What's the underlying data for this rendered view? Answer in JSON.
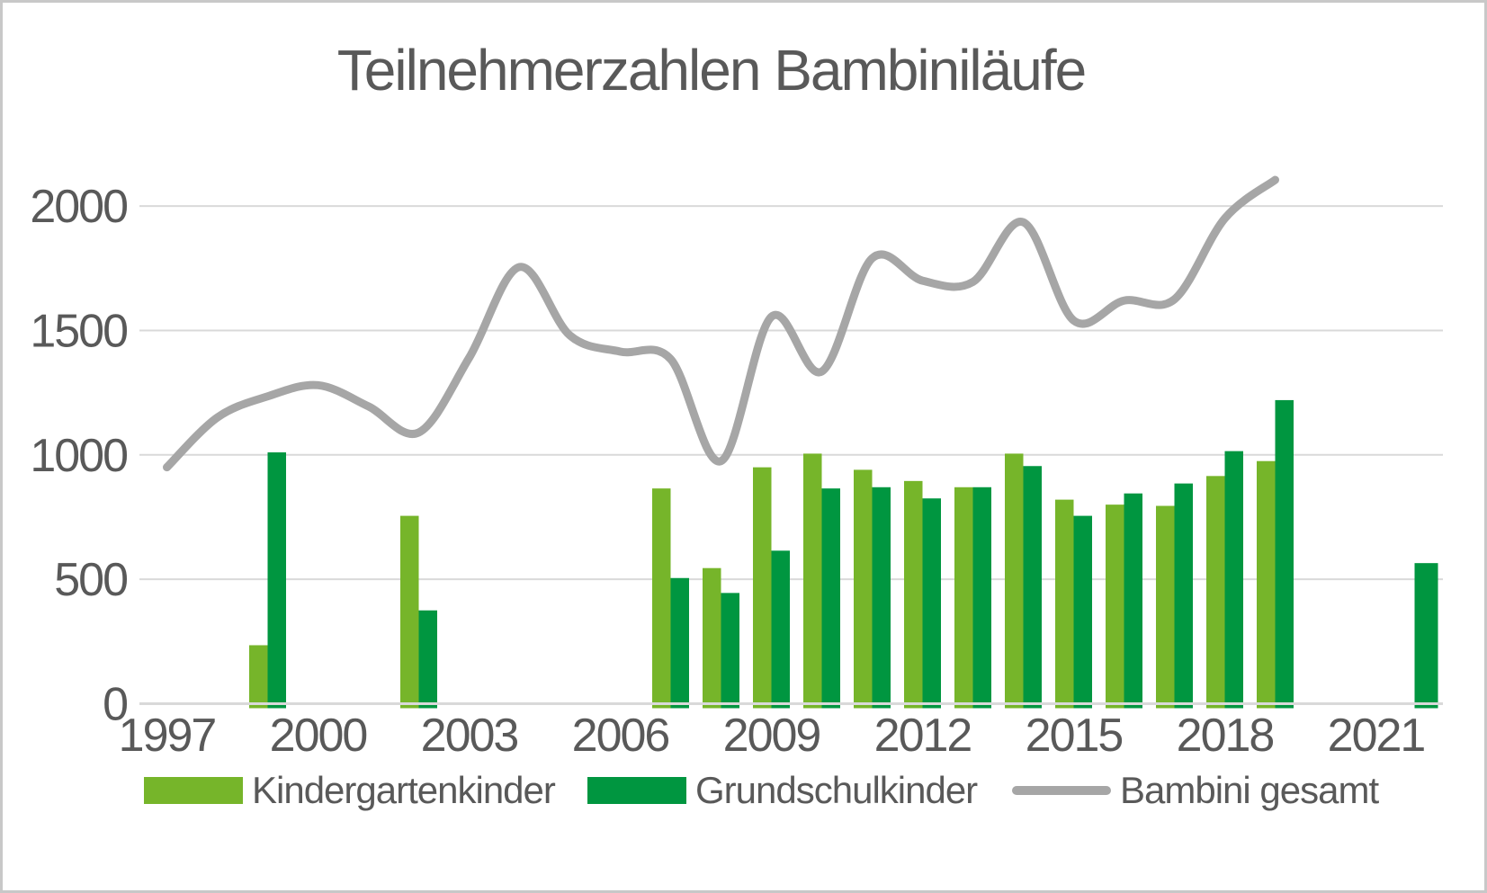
{
  "chart_data": {
    "type": "combo",
    "title": "Teilnehmerzahlen Bambiniläufe",
    "categories": [
      1997,
      1998,
      1999,
      2000,
      2001,
      2002,
      2003,
      2004,
      2005,
      2006,
      2007,
      2008,
      2009,
      2010,
      2011,
      2012,
      2013,
      2014,
      2015,
      2016,
      2017,
      2018,
      2019,
      2020,
      2021,
      2022
    ],
    "series": [
      {
        "name": "Kindergartenkinder",
        "type": "bar",
        "color": "#76B52A",
        "values": [
          null,
          null,
          235,
          null,
          null,
          755,
          null,
          null,
          null,
          null,
          865,
          545,
          950,
          1005,
          940,
          895,
          870,
          1005,
          820,
          800,
          795,
          915,
          975,
          null,
          null,
          null
        ]
      },
      {
        "name": "Grundschulkinder",
        "type": "bar",
        "color": "#009640",
        "values": [
          null,
          null,
          1010,
          null,
          null,
          375,
          null,
          null,
          null,
          null,
          505,
          445,
          615,
          865,
          870,
          825,
          870,
          955,
          755,
          845,
          885,
          1015,
          1220,
          null,
          null,
          565
        ]
      },
      {
        "name": "Bambini gesamt",
        "type": "line",
        "color": "#A6A6A6",
        "values": [
          950,
          1150,
          1235,
          1280,
          1195,
          1090,
          1390,
          1755,
          1480,
          1415,
          1385,
          975,
          1555,
          1335,
          1790,
          1700,
          1695,
          1935,
          1540,
          1620,
          1625,
          1950,
          2105,
          null,
          null,
          null
        ]
      }
    ],
    "axes": {
      "ylim": [
        0,
        2200
      ],
      "yticks": [
        0,
        500,
        1000,
        1500,
        2000
      ],
      "xticks": [
        1997,
        2000,
        2003,
        2006,
        2009,
        2012,
        2015,
        2018,
        2021
      ],
      "grid": "horizontal"
    },
    "legend_position": "bottom",
    "palette": {
      "grid_color": "#D9D9D9",
      "axis_color": "#D9D9D9",
      "text_color": "#595959",
      "background": "#FFFFFF",
      "border": "#C8C8C8"
    }
  }
}
